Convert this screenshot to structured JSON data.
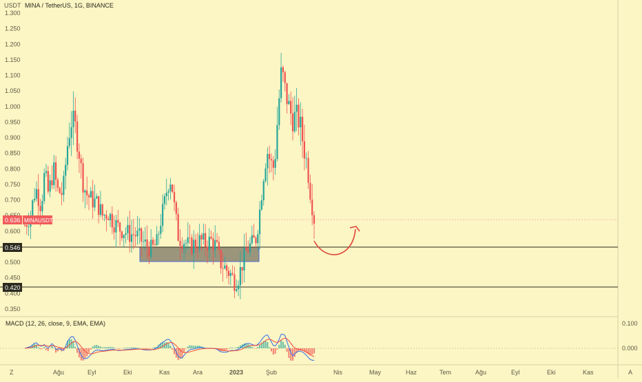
{
  "header": {
    "currency": "USDT",
    "symbol_title": "MINA / TetherUS, 1G, BINANCE"
  },
  "price_badge": {
    "label": "MINAUSDT",
    "value": "0.636"
  },
  "levels": [
    {
      "label": "0.546"
    },
    {
      "label": "0.420"
    }
  ],
  "macd": {
    "title": "MACD (12, 26, close, 9, EMA, EMA)",
    "ticks": [
      "0.100",
      "0.000"
    ]
  },
  "footer": {
    "left_corner": "Z",
    "right_corner": "A"
  },
  "chart_data": {
    "type": "candlestick",
    "ylim": [
      0.35,
      1.3
    ],
    "y_ticks": [
      "1.300",
      "1.250",
      "1.200",
      "1.150",
      "1.100",
      "1.050",
      "1.000",
      "0.950",
      "0.900",
      "0.850",
      "0.800",
      "0.750",
      "0.700",
      "0.650",
      "0.600",
      "0.500",
      "0.450",
      "0.400",
      "0.350"
    ],
    "x_ticks": [
      "Ağu",
      "Eyl",
      "Eki",
      "Kas",
      "Ara",
      "2023",
      "Şub",
      "Nis",
      "May",
      "Haz",
      "Tem",
      "Ağu",
      "Eyl",
      "Eki",
      "Kas"
    ],
    "price_path": [
      [
        0,
        0.62
      ],
      [
        3,
        0.65
      ],
      [
        6,
        0.74
      ],
      [
        9,
        0.68
      ],
      [
        11,
        0.79
      ],
      [
        13,
        0.72
      ],
      [
        16,
        0.8
      ],
      [
        18,
        0.73
      ],
      [
        21,
        0.72
      ],
      [
        24,
        0.9
      ],
      [
        26,
        0.96
      ],
      [
        28,
        0.93
      ],
      [
        30,
        0.86
      ],
      [
        32,
        0.76
      ],
      [
        34,
        0.72
      ],
      [
        37,
        0.7
      ],
      [
        40,
        0.69
      ],
      [
        43,
        0.65
      ],
      [
        46,
        0.66
      ],
      [
        49,
        0.63
      ],
      [
        52,
        0.61
      ],
      [
        55,
        0.6
      ],
      [
        58,
        0.59
      ],
      [
        61,
        0.59
      ],
      [
        63,
        0.58
      ],
      [
        66,
        0.56
      ],
      [
        68,
        0.55
      ],
      [
        70,
        0.54
      ],
      [
        73,
        0.56
      ],
      [
        75,
        0.63
      ],
      [
        77,
        0.68
      ],
      [
        79,
        0.75
      ],
      [
        81,
        0.77
      ],
      [
        83,
        0.66
      ],
      [
        85,
        0.58
      ],
      [
        88,
        0.57
      ],
      [
        91,
        0.55
      ],
      [
        94,
        0.56
      ],
      [
        97,
        0.57
      ],
      [
        100,
        0.56
      ],
      [
        103,
        0.57
      ],
      [
        106,
        0.55
      ],
      [
        108,
        0.5
      ],
      [
        111,
        0.48
      ],
      [
        114,
        0.46
      ],
      [
        116,
        0.44
      ],
      [
        118,
        0.45
      ],
      [
        120,
        0.49
      ],
      [
        122,
        0.53
      ],
      [
        124,
        0.55
      ],
      [
        126,
        0.56
      ],
      [
        128,
        0.58
      ],
      [
        130,
        0.67
      ],
      [
        132,
        0.78
      ],
      [
        134,
        0.86
      ],
      [
        136,
        0.82
      ],
      [
        138,
        0.8
      ],
      [
        140,
        0.98
      ],
      [
        142,
        1.12
      ],
      [
        144,
        1.05
      ],
      [
        146,
        1.0
      ],
      [
        148,
        0.96
      ],
      [
        150,
        0.97
      ],
      [
        152,
        0.95
      ],
      [
        154,
        0.88
      ],
      [
        156,
        0.82
      ],
      [
        158,
        0.72
      ],
      [
        160,
        0.64
      ]
    ],
    "horizontal_levels": [
      0.546,
      0.42
    ],
    "current_price": 0.636,
    "support_zone": [
      0.5,
      0.546
    ],
    "annotation": "curved-arrow-projection"
  }
}
